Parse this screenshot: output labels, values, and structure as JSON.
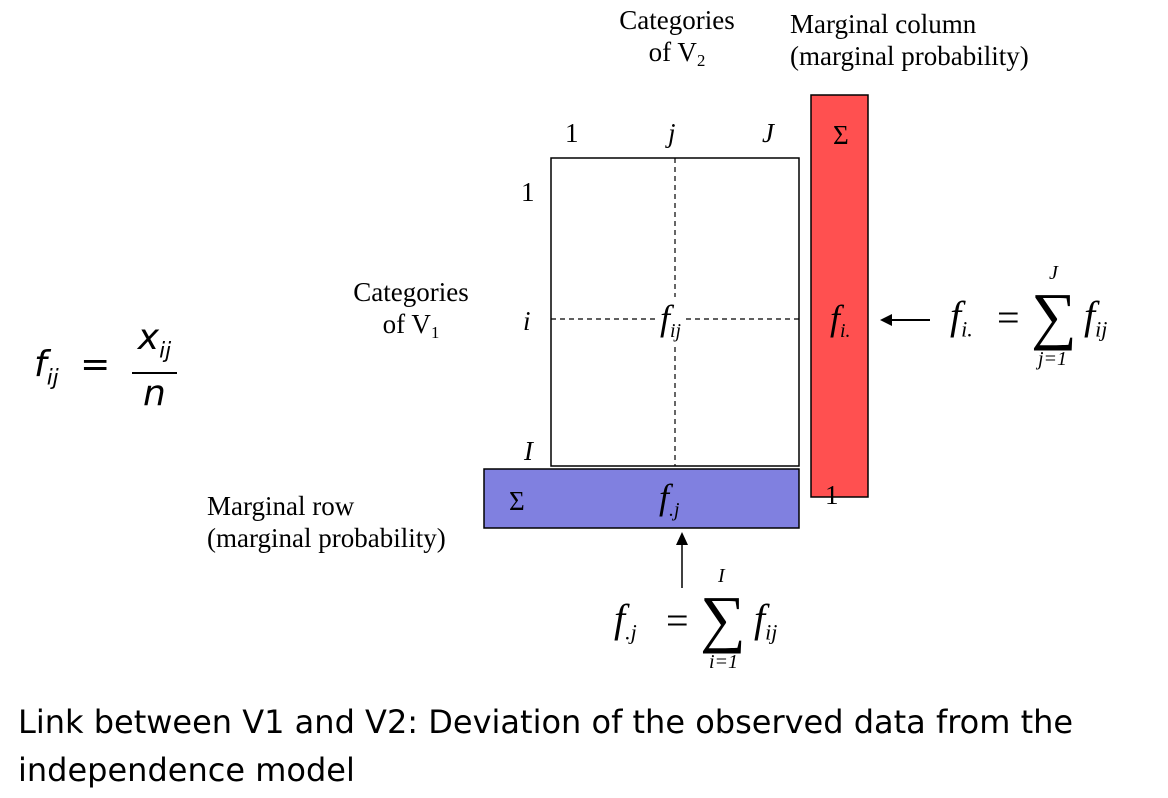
{
  "formula_left": {
    "lhs_base": "f",
    "lhs_sub": "ij",
    "equals": "=",
    "numerator_base": "x",
    "numerator_sub": "ij",
    "denominator": "n"
  },
  "top_label": {
    "line1": "Categories",
    "line2_prefix": "of V",
    "line2_sub": "2"
  },
  "marginal_column_label": {
    "line1": "Marginal column",
    "line2": "(marginal probability)"
  },
  "left_label": {
    "line1": "Categories",
    "line2_prefix": "of V",
    "line2_sub": "1"
  },
  "marginal_row_label": {
    "line1": "Marginal row",
    "line2": "(marginal probability)"
  },
  "col_headers": {
    "first": "1",
    "middle": "j",
    "last": "J",
    "sum": "Σ"
  },
  "row_headers": {
    "first": "1",
    "middle": "i",
    "last": "I",
    "marg_col_end": "1"
  },
  "cell": {
    "base": "f",
    "sub": "ij"
  },
  "marg_col_cell": {
    "base": "f",
    "sub": "i."
  },
  "marg_row": {
    "sum": "Σ",
    "base": "f",
    "sub": ".j"
  },
  "arrow_left_symbol": "←",
  "sum_formula_row": {
    "lhs_base": "f",
    "lhs_sub": "i.",
    "equals": "=",
    "upper": "J",
    "lower": "j=1",
    "rhs_base": "f",
    "rhs_sub": "ij"
  },
  "sum_formula_col": {
    "lhs_base": "f",
    "lhs_sub": ".j",
    "equals": "=",
    "upper": "I",
    "lower": "i=1",
    "rhs_base": "f",
    "rhs_sub": "ij"
  },
  "caption": "Link between V1 and V2: Deviation of the observed data from the independence model",
  "colors": {
    "marginal_column": "#ff5050",
    "marginal_row": "#8080e0",
    "stroke": "#000000"
  }
}
